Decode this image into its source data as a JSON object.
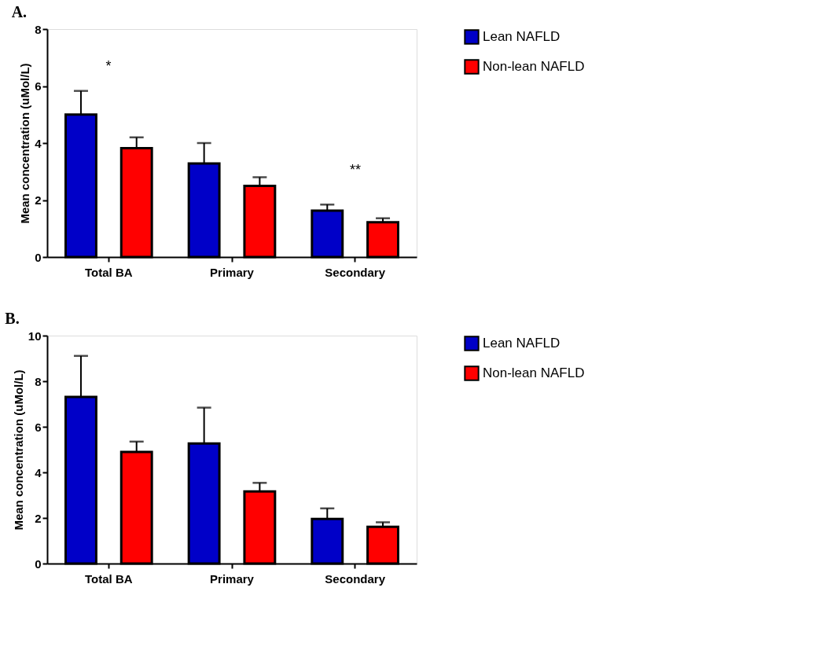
{
  "chart_data": [
    {
      "type": "bar",
      "title": "A.",
      "ylabel": "Mean concentration (uMol/L)",
      "categories": [
        "Total BA",
        "Primary",
        "Secondary"
      ],
      "ylim": [
        0,
        8
      ],
      "yticks": [
        0,
        2,
        4,
        6,
        8
      ],
      "grid": false,
      "legend": "top right",
      "series": [
        {
          "name": "Lean NAFLD",
          "color": "#0000c8",
          "values": [
            5.0,
            3.28,
            1.63
          ],
          "errors": [
            0.83,
            0.72,
            0.21
          ]
        },
        {
          "name": "Non-lean NAFLD",
          "color": "#ff0000",
          "values": [
            3.82,
            2.5,
            1.22
          ],
          "errors": [
            0.38,
            0.3,
            0.14
          ]
        }
      ],
      "annotations": [
        "*",
        "**"
      ]
    },
    {
      "type": "bar",
      "title": "B.",
      "ylabel": "Mean concentration (uMol/L)",
      "categories": [
        "Total BA",
        "Primary",
        "Secondary"
      ],
      "ylim": [
        0,
        10
      ],
      "yticks": [
        0,
        2,
        4,
        6,
        8,
        10
      ],
      "grid": false,
      "legend": "top right",
      "series": [
        {
          "name": "Lean NAFLD",
          "color": "#0000c8",
          "values": [
            7.31,
            5.27,
            1.96
          ],
          "errors": [
            1.8,
            1.57,
            0.46
          ]
        },
        {
          "name": "Non-lean NAFLD",
          "color": "#ff0000",
          "values": [
            4.9,
            3.16,
            1.61
          ],
          "errors": [
            0.45,
            0.38,
            0.2
          ]
        }
      ]
    }
  ]
}
